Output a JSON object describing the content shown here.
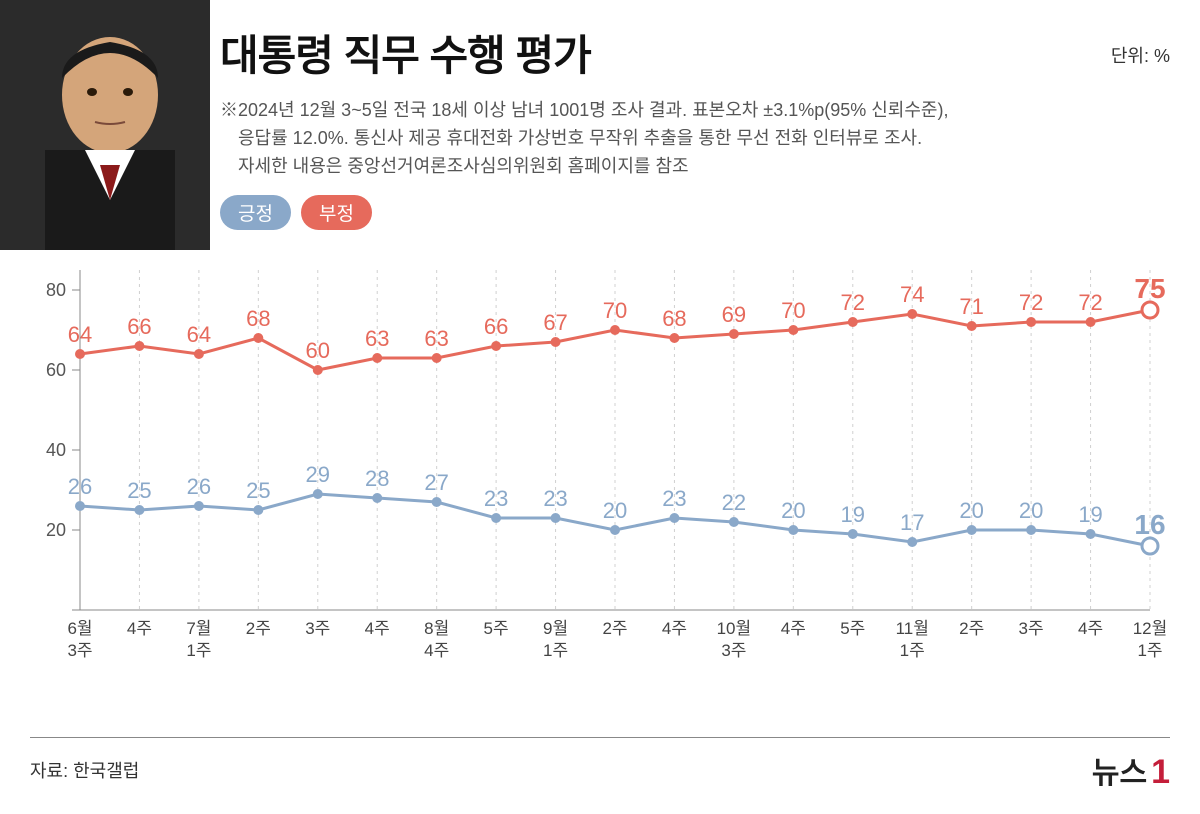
{
  "title": "대통령 직무 수행 평가",
  "unit": "단위: %",
  "subtitle_line1": "※2024년 12월 3~5일 전국 18세 이상 남녀 1001명 조사 결과. 표본오차 ±3.1%p(95% 신뢰수준),",
  "subtitle_line2": "응답률 12.0%. 통신사 제공 휴대전화 가상번호 무작위 추출을 통한 무선 전화 인터뷰로 조사.",
  "subtitle_line3": "자세한 내용은 중앙선거여론조사심의위원회 홈페이지를 참조",
  "legend": {
    "positive": {
      "label": "긍정",
      "color": "#8aa8c9"
    },
    "negative": {
      "label": "부정",
      "color": "#e66a5c"
    }
  },
  "chart": {
    "type": "line",
    "ylim": [
      0,
      85
    ],
    "yticks": [
      20,
      40,
      60,
      80
    ],
    "grid_color": "#d0d0d0",
    "background_color": "#ffffff",
    "axis_color": "#888888",
    "tick_fontsize": 18,
    "value_fontsize": 22,
    "line_width": 3,
    "marker_radius": 5,
    "final_marker_radius": 8,
    "x_labels": [
      [
        "6월",
        "3주"
      ],
      [
        "4주"
      ],
      [
        "7월",
        "1주"
      ],
      [
        "2주"
      ],
      [
        "3주"
      ],
      [
        "4주"
      ],
      [
        "8월",
        "4주"
      ],
      [
        "5주"
      ],
      [
        "9월",
        "1주"
      ],
      [
        "2주"
      ],
      [
        "4주"
      ],
      [
        "10월",
        "3주"
      ],
      [
        "4주"
      ],
      [
        "5주"
      ],
      [
        "11월",
        "1주"
      ],
      [
        "2주"
      ],
      [
        "3주"
      ],
      [
        "4주"
      ],
      [
        "12월",
        "1주"
      ]
    ],
    "series": {
      "negative": {
        "color": "#e66a5c",
        "values": [
          64,
          66,
          64,
          68,
          60,
          63,
          63,
          66,
          67,
          70,
          68,
          69,
          70,
          72,
          74,
          71,
          72,
          72,
          75
        ]
      },
      "positive": {
        "color": "#8aa8c9",
        "values": [
          26,
          25,
          26,
          25,
          29,
          28,
          27,
          23,
          23,
          20,
          23,
          22,
          20,
          19,
          17,
          20,
          20,
          19,
          16
        ]
      }
    }
  },
  "source": "자료: 한국갤럽",
  "brand": {
    "text": "뉴스",
    "num": "1",
    "num_color": "#c41e3a"
  }
}
